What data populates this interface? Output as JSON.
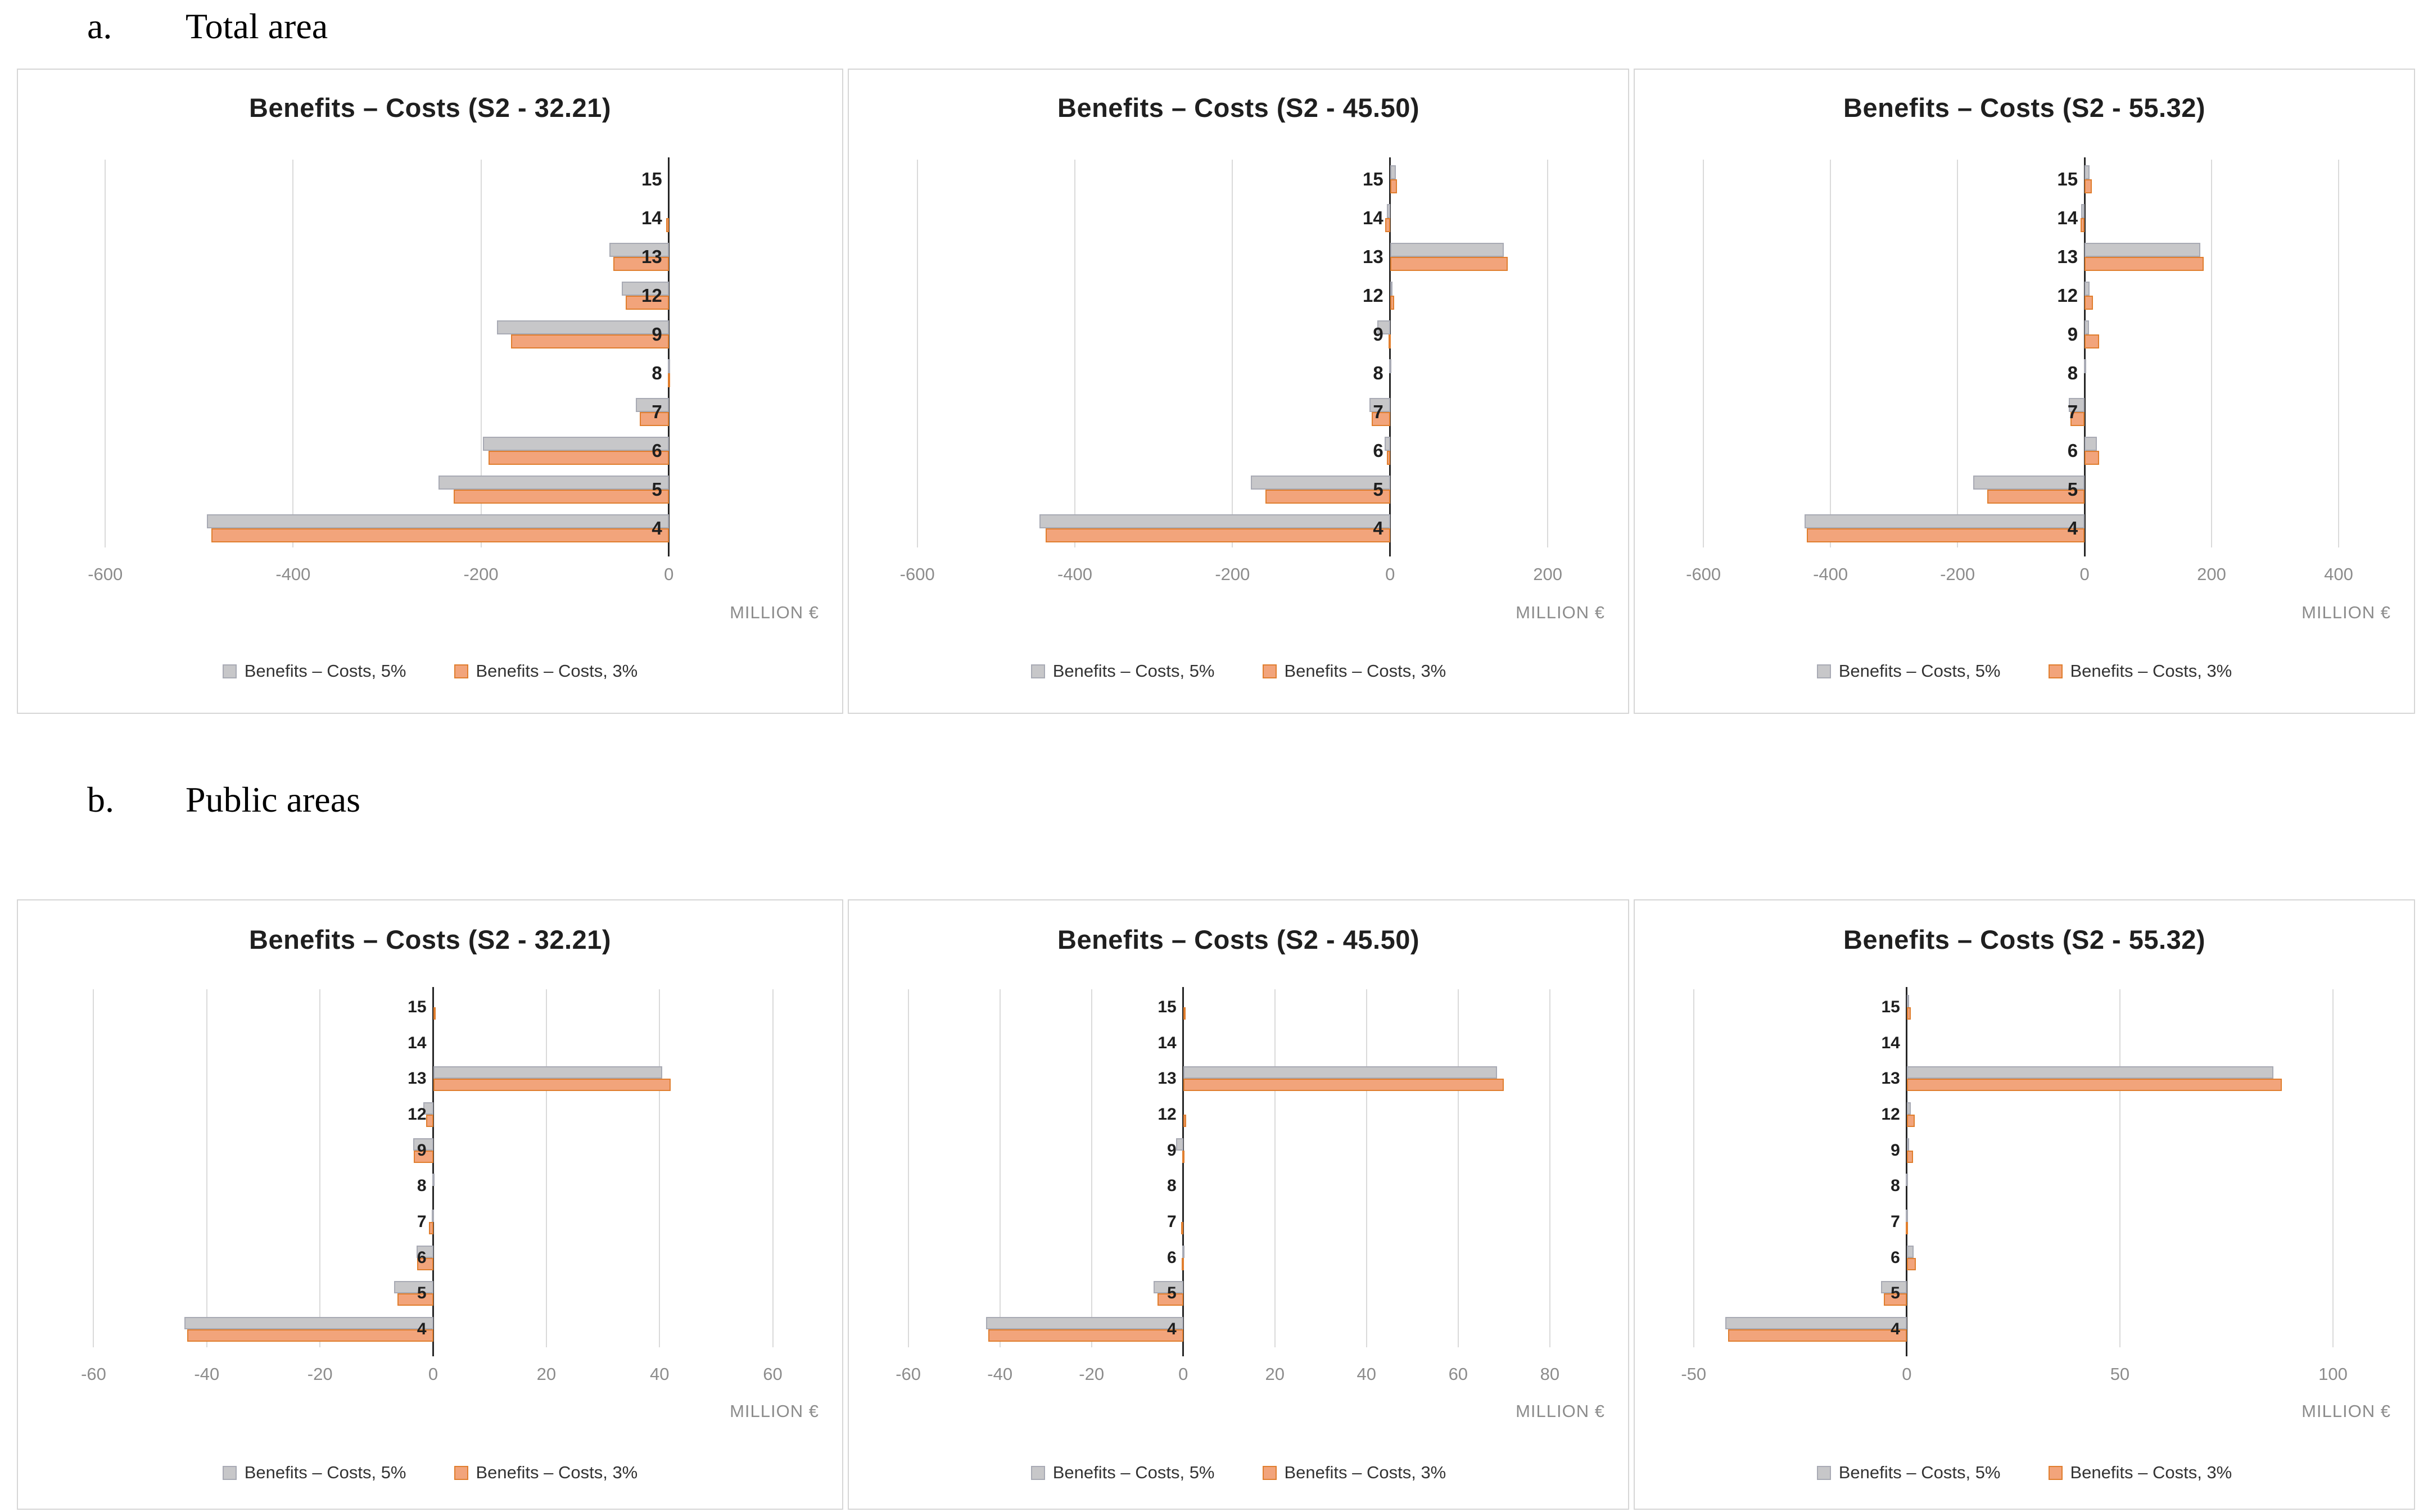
{
  "page": {
    "background": "#ffffff"
  },
  "sections": [
    {
      "marker": "a.",
      "title": "Total area"
    },
    {
      "marker": "b.",
      "title": "Public areas"
    }
  ],
  "colors": {
    "gray_fill": "#c7c7c9",
    "gray_border": "#a8aab4",
    "orange_fill": "#f2a47b",
    "orange_border": "#e07e2e",
    "axis": "#262626",
    "gridline": "#dadada",
    "tick_text": "#8c8c8c",
    "title_text": "#1f1f1f"
  },
  "chart_data": [
    {
      "type": "bar",
      "orientation": "horizontal",
      "section": "Total area",
      "title": "Benefits – Costs (S2 - 32.21)",
      "xlabel": "MILLION €",
      "categories": [
        "15",
        "14",
        "13",
        "12",
        "9",
        "8",
        "7",
        "6",
        "5",
        "4"
      ],
      "series": [
        {
          "name": "Benefits – Costs, 5%",
          "color": "gray",
          "values": [
            0,
            0,
            -63,
            -50,
            -183,
            -1,
            -35,
            -198,
            -245,
            -492
          ]
        },
        {
          "name": "Benefits – Costs, 3%",
          "color": "orange",
          "values": [
            0,
            -3,
            -59,
            -46,
            -168,
            -1,
            -31,
            -192,
            -229,
            -487
          ]
        }
      ],
      "xticks": [
        -600,
        -400,
        -200,
        0
      ],
      "xlim": [
        -657,
        151
      ],
      "grid": true,
      "legend_position": "bottom"
    },
    {
      "type": "bar",
      "orientation": "horizontal",
      "section": "Total area",
      "title": "Benefits – Costs (S2 - 45.50)",
      "xlabel": "MILLION €",
      "categories": [
        "15",
        "14",
        "13",
        "12",
        "9",
        "8",
        "7",
        "6",
        "5",
        "4"
      ],
      "series": [
        {
          "name": "Benefits – Costs, 5%",
          "color": "gray",
          "values": [
            7,
            -4,
            144,
            1,
            -16,
            -1,
            -26,
            -7,
            -177,
            -445
          ]
        },
        {
          "name": "Benefits – Costs, 3%",
          "color": "orange",
          "values": [
            9,
            -6,
            149,
            5,
            -2,
            0,
            -23,
            -4,
            -158,
            -437
          ]
        }
      ],
      "xticks": [
        -600,
        -400,
        -200,
        0,
        200
      ],
      "xlim": [
        -644,
        262
      ],
      "grid": true,
      "legend_position": "bottom"
    },
    {
      "type": "bar",
      "orientation": "horizontal",
      "section": "Total area",
      "title": "Benefits – Costs (S2 - 55.32)",
      "xlabel": "MILLION €",
      "categories": [
        "15",
        "14",
        "13",
        "12",
        "9",
        "8",
        "7",
        "6",
        "5",
        "4"
      ],
      "series": [
        {
          "name": "Benefits – Costs, 5%",
          "color": "gray",
          "values": [
            8,
            -5,
            182,
            8,
            7,
            -1,
            -25,
            19,
            -175,
            -441
          ]
        },
        {
          "name": "Benefits – Costs, 3%",
          "color": "orange",
          "values": [
            11,
            -6,
            188,
            13,
            23,
            0,
            -22,
            23,
            -153,
            -437
          ]
        }
      ],
      "xticks": [
        -600,
        -400,
        -200,
        0,
        200,
        400
      ],
      "xlim": [
        -655,
        469
      ],
      "grid": true,
      "legend_position": "bottom"
    },
    {
      "type": "bar",
      "orientation": "horizontal",
      "section": "Public areas",
      "title": "Benefits – Costs (S2 - 32.21)",
      "xlabel": "MILLION €",
      "categories": [
        "15",
        "14",
        "13",
        "12",
        "9",
        "8",
        "7",
        "6",
        "5",
        "4"
      ],
      "series": [
        {
          "name": "Benefits – Costs, 5%",
          "color": "gray",
          "values": [
            0,
            0,
            40.5,
            -1.7,
            -3.5,
            -0.2,
            -0.3,
            -2.9,
            -6.9,
            -44
          ]
        },
        {
          "name": "Benefits – Costs, 3%",
          "color": "orange",
          "values": [
            0.4,
            0,
            42,
            -1.2,
            -3.4,
            0,
            -0.7,
            -2.8,
            -6.3,
            -43.5
          ]
        }
      ],
      "xticks": [
        -60,
        -40,
        -20,
        0,
        20,
        40,
        60
      ],
      "xlim": [
        -67.4,
        66.7
      ],
      "grid": true,
      "legend_position": "bottom"
    },
    {
      "type": "bar",
      "orientation": "horizontal",
      "section": "Public areas",
      "title": "Benefits – Costs (S2 - 45.50)",
      "xlabel": "MILLION €",
      "categories": [
        "15",
        "14",
        "13",
        "12",
        "9",
        "8",
        "7",
        "6",
        "5",
        "4"
      ],
      "series": [
        {
          "name": "Benefits – Costs, 5%",
          "color": "gray",
          "values": [
            0,
            0,
            68.5,
            0,
            -1.6,
            0,
            0,
            -0.2,
            -6.5,
            -43
          ]
        },
        {
          "name": "Benefits – Costs, 3%",
          "color": "orange",
          "values": [
            0.5,
            0,
            70,
            0.7,
            -0.2,
            0,
            -0.4,
            -0.3,
            -5.6,
            -42.5
          ]
        }
      ],
      "xticks": [
        -60,
        -40,
        -20,
        0,
        20,
        40,
        60,
        80
      ],
      "xlim": [
        -65.6,
        90.2
      ],
      "grid": true,
      "legend_position": "bottom"
    },
    {
      "type": "bar",
      "orientation": "horizontal",
      "section": "Public areas",
      "title": "Benefits – Costs (S2 - 55.32)",
      "xlabel": "MILLION €",
      "categories": [
        "15",
        "14",
        "13",
        "12",
        "9",
        "8",
        "7",
        "6",
        "5",
        "4"
      ],
      "series": [
        {
          "name": "Benefits – Costs, 5%",
          "color": "gray",
          "values": [
            0.3,
            0,
            86,
            1.0,
            0.4,
            -0.2,
            -0.3,
            1.6,
            -6.0,
            -42.6
          ]
        },
        {
          "name": "Benefits – Costs, 3%",
          "color": "orange",
          "values": [
            1.0,
            0,
            88,
            1.9,
            1.5,
            0,
            -0.3,
            2.1,
            -5.4,
            -41.9
          ]
        }
      ],
      "xticks": [
        -50,
        0,
        50,
        100
      ],
      "xlim": [
        -55.9,
        111.6
      ],
      "grid": true,
      "legend_position": "bottom"
    }
  ]
}
